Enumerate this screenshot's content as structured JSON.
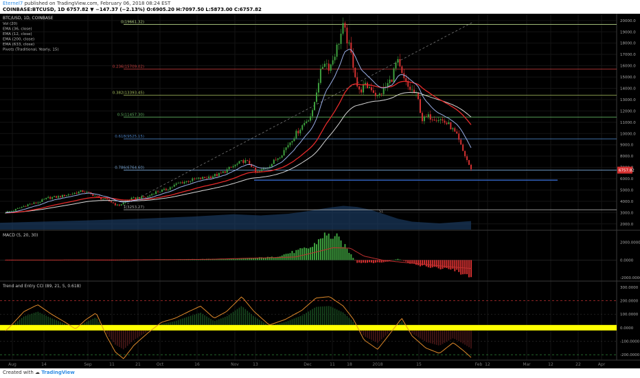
{
  "header": {
    "author": "Eternel7",
    "published_text": " published on TradingView.com, February 06, 2018 08:24 EST",
    "quote_line": "COINBASE:BTCUSD, 1D  6757.82 ▼ −147.37 (−2.13%) O:6905.20 H:7097.50 L:5873.00 C:6757.82"
  },
  "legend": {
    "symbol": "BTC/USD, 1D, COINBASE",
    "items": [
      "Vol (20)",
      "EMA (36, close)",
      "EMA (12, close)",
      "EMA (200, close)",
      "EMA (633, close)",
      "Pivots (Traditional, Yearly, 15)"
    ]
  },
  "footer": {
    "created_with": "Created with",
    "brand": "TradingView"
  },
  "colors": {
    "background": "#000000",
    "up": "#3ea13e",
    "down": "#d53030",
    "ema_blue": "#9bb0e8",
    "ema_red": "#e62a2a",
    "ema_white": "#d8d8d8",
    "macd_line": "#c03030",
    "cci_orange": "#e08a2a",
    "highlight": "#ffff00",
    "support": "#3a73e0"
  },
  "chart_data": [
    {
      "type": "candlestick",
      "title": "BTC/USD, 1D, COINBASE",
      "x_ticks": [
        "Aug",
        "14",
        "Sep",
        "11",
        "21",
        "Oct",
        "16",
        "Nov",
        "13",
        "Dec",
        "11",
        "18",
        "2018",
        "15",
        "Feb",
        "12",
        "Mar",
        "12",
        "22",
        "Apr"
      ],
      "y_ticks": [
        2000,
        3000,
        4000,
        5000,
        6000,
        7000,
        8000,
        9000,
        10000,
        11000,
        12000,
        13000,
        14000,
        15000,
        16000,
        17000,
        18000,
        19000,
        20000
      ],
      "ylim": [
        1500,
        20600
      ],
      "current_price_label": "6757.82",
      "current_price": 6757.82,
      "fib_levels": [
        {
          "label": "0(19661.32)",
          "value": 19661.32,
          "color": "#b8d68a"
        },
        {
          "label": "0.236(15709.02)",
          "value": 15709.02,
          "color": "#d04040"
        },
        {
          "label": "0.382(13393.45)",
          "value": 13393.45,
          "color": "#a8c060"
        },
        {
          "label": "0.5(11457.30)",
          "value": 11457.3,
          "color": "#60b060"
        },
        {
          "label": "0.618(9525.15)",
          "value": 9525.15,
          "color": "#4a7fc0"
        },
        {
          "label": "0.786(6764.60)",
          "value": 6764.6,
          "color": "#7aa8d8"
        },
        {
          "label": "1(3253.27)",
          "value": 3253.27,
          "color": "#aaaaaa"
        }
      ],
      "support_level": 5873,
      "pivot_labels": [
        "S1"
      ],
      "anchors": [
        [
          0,
          2900
        ],
        [
          20,
          3200
        ],
        [
          40,
          3700
        ],
        [
          55,
          3900
        ],
        [
          70,
          4300
        ],
        [
          85,
          4400
        ],
        [
          100,
          4600
        ],
        [
          120,
          4900
        ],
        [
          130,
          4700
        ],
        [
          145,
          4300
        ],
        [
          160,
          4000
        ],
        [
          172,
          3600
        ],
        [
          178,
          3800
        ],
        [
          190,
          4200
        ],
        [
          200,
          4300
        ],
        [
          215,
          4400
        ],
        [
          225,
          4800
        ],
        [
          240,
          5000
        ],
        [
          260,
          5600
        ],
        [
          280,
          5900
        ],
        [
          300,
          6100
        ],
        [
          320,
          6400
        ],
        [
          340,
          7100
        ],
        [
          355,
          7600
        ],
        [
          365,
          7300
        ],
        [
          372,
          6500
        ],
        [
          380,
          6700
        ],
        [
          395,
          7300
        ],
        [
          410,
          8200
        ],
        [
          425,
          9500
        ],
        [
          440,
          10700
        ],
        [
          455,
          11800
        ],
        [
          463,
          14500
        ],
        [
          472,
          16500
        ],
        [
          480,
          15800
        ],
        [
          490,
          17500
        ],
        [
          500,
          19500
        ],
        [
          505,
          18400
        ],
        [
          512,
          16800
        ],
        [
          518,
          15000
        ],
        [
          522,
          13600
        ],
        [
          530,
          14200
        ],
        [
          540,
          14100
        ],
        [
          550,
          13200
        ],
        [
          560,
          14000
        ],
        [
          570,
          14800
        ],
        [
          578,
          16500
        ],
        [
          586,
          15000
        ],
        [
          594,
          14100
        ],
        [
          600,
          13800
        ],
        [
          608,
          13200
        ],
        [
          615,
          11200
        ],
        [
          625,
          11500
        ],
        [
          640,
          11300
        ],
        [
          655,
          10700
        ],
        [
          665,
          9800
        ],
        [
          675,
          8300
        ],
        [
          682,
          7400
        ],
        [
          686,
          6758
        ]
      ],
      "vol_profile": [
        [
          0,
          2100
        ],
        [
          60,
          2200
        ],
        [
          120,
          2300
        ],
        [
          200,
          2450
        ],
        [
          280,
          2650
        ],
        [
          340,
          2850
        ],
        [
          380,
          2750
        ],
        [
          420,
          2900
        ],
        [
          450,
          3150
        ],
        [
          480,
          3450
        ],
        [
          500,
          3600
        ],
        [
          520,
          3500
        ],
        [
          540,
          3250
        ],
        [
          560,
          2850
        ],
        [
          580,
          2450
        ],
        [
          600,
          2200
        ],
        [
          640,
          2050
        ],
        [
          686,
          2250
        ]
      ]
    },
    {
      "type": "bar",
      "title": "MACD (5, 20, 30)",
      "y_ticks": [
        2000,
        0,
        -2000
      ],
      "ylim": [
        -2300,
        3300
      ],
      "histogram_anchors": [
        [
          0,
          -5
        ],
        [
          100,
          20
        ],
        [
          160,
          -10
        ],
        [
          250,
          80
        ],
        [
          340,
          150
        ],
        [
          400,
          350
        ],
        [
          455,
          1500
        ],
        [
          470,
          2800
        ],
        [
          490,
          2600
        ],
        [
          505,
          1300
        ],
        [
          520,
          -350
        ],
        [
          560,
          -250
        ],
        [
          580,
          150
        ],
        [
          600,
          -450
        ],
        [
          630,
          -800
        ],
        [
          660,
          -1100
        ],
        [
          686,
          -1800
        ]
      ],
      "signal_anchors": [
        [
          0,
          0
        ],
        [
          150,
          10
        ],
        [
          300,
          80
        ],
        [
          430,
          350
        ],
        [
          460,
          900
        ],
        [
          485,
          1400
        ],
        [
          510,
          1350
        ],
        [
          530,
          450
        ],
        [
          560,
          -50
        ],
        [
          600,
          -350
        ],
        [
          640,
          -650
        ],
        [
          686,
          -950
        ]
      ]
    },
    {
      "type": "line",
      "title": "Trend and Entry CCI (89, 21, 5, 0.618)",
      "y_ticks": [
        300,
        200,
        100,
        0,
        -100,
        -200
      ],
      "ylim": [
        -240,
        340
      ],
      "ref_lines": [
        200,
        -200
      ],
      "cci_anchors": [
        [
          0,
          -60
        ],
        [
          15,
          10
        ],
        [
          35,
          120
        ],
        [
          55,
          170
        ],
        [
          75,
          100
        ],
        [
          95,
          40
        ],
        [
          110,
          -10
        ],
        [
          125,
          60
        ],
        [
          140,
          110
        ],
        [
          155,
          -60
        ],
        [
          168,
          -180
        ],
        [
          180,
          -230
        ],
        [
          195,
          -130
        ],
        [
          215,
          -40
        ],
        [
          235,
          40
        ],
        [
          255,
          70
        ],
        [
          275,
          120
        ],
        [
          292,
          160
        ],
        [
          312,
          70
        ],
        [
          330,
          120
        ],
        [
          352,
          230
        ],
        [
          370,
          120
        ],
        [
          392,
          20
        ],
        [
          415,
          60
        ],
        [
          440,
          130
        ],
        [
          460,
          220
        ],
        [
          480,
          230
        ],
        [
          500,
          160
        ],
        [
          515,
          60
        ],
        [
          530,
          -90
        ],
        [
          550,
          -160
        ],
        [
          570,
          -30
        ],
        [
          585,
          70
        ],
        [
          600,
          -60
        ],
        [
          620,
          -150
        ],
        [
          640,
          -190
        ],
        [
          660,
          -110
        ],
        [
          675,
          -170
        ],
        [
          686,
          -220
        ]
      ]
    }
  ]
}
